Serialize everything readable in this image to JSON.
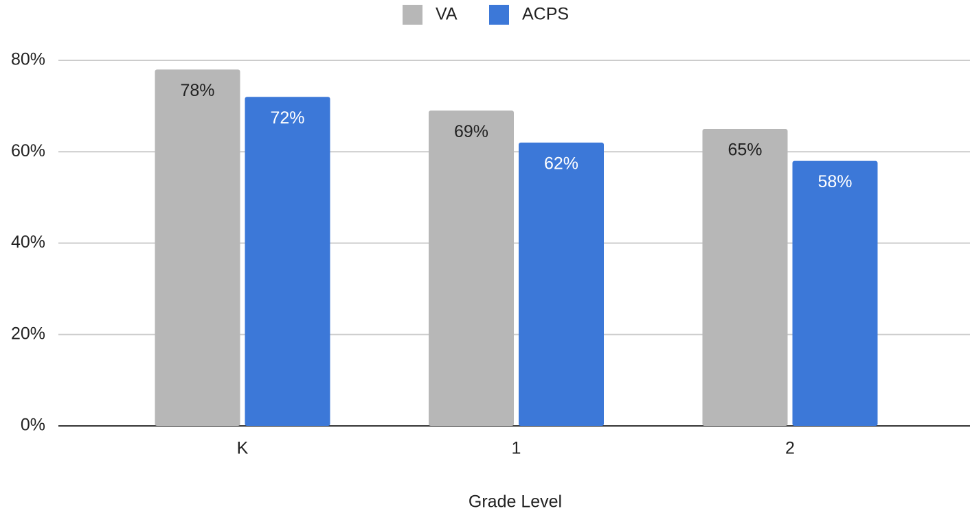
{
  "chart_data": {
    "type": "bar",
    "x_label": "Grade Level",
    "categories": [
      "K",
      "1",
      "2"
    ],
    "series": [
      {
        "name": "VA",
        "color": "#b7b7b7",
        "values": [
          78,
          69,
          65
        ],
        "value_labels": [
          "78%",
          "69%",
          "65%"
        ],
        "label_color": "#222222"
      },
      {
        "name": "ACPS",
        "color": "#3c78d8",
        "values": [
          72,
          62,
          58
        ],
        "value_labels": [
          "72%",
          "62%",
          "58%"
        ],
        "label_color": "#ffffff"
      }
    ],
    "ylim": [
      0,
      80
    ],
    "yticks": [
      {
        "value": 0,
        "label": "0%"
      },
      {
        "value": 20,
        "label": "20%"
      },
      {
        "value": 40,
        "label": "40%"
      },
      {
        "value": 60,
        "label": "60%"
      },
      {
        "value": 80,
        "label": "80%"
      }
    ],
    "grid": true,
    "legend": "top"
  }
}
